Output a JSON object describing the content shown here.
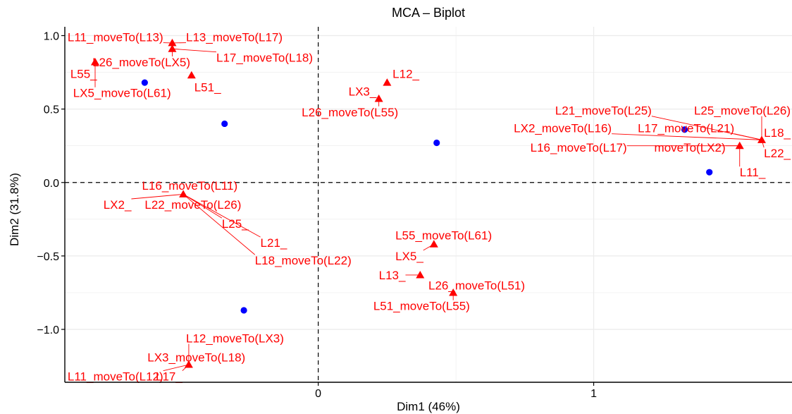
{
  "chart_data": {
    "type": "scatter",
    "title": "MCA – Biplot",
    "xlabel": "Dim1 (46%)",
    "ylabel": "Dim2 (31.8%)",
    "xlim": [
      -0.92,
      1.72
    ],
    "ylim": [
      -1.36,
      1.06
    ],
    "xticks": [
      0,
      1
    ],
    "yticks": [
      -1.0,
      -0.5,
      0.0,
      0.5,
      1.0
    ],
    "grid": true,
    "reference_lines": {
      "x": 0,
      "y": 0
    },
    "colors": {
      "individuals": "#0000ff",
      "categories": "#ff0000",
      "grid": "#ebebeb"
    },
    "individuals": [
      {
        "x": -0.63,
        "y": 0.68
      },
      {
        "x": -0.34,
        "y": 0.4
      },
      {
        "x": 0.43,
        "y": 0.27
      },
      {
        "x": 1.33,
        "y": 0.36
      },
      {
        "x": 1.42,
        "y": 0.07
      },
      {
        "x": -0.27,
        "y": -0.87
      }
    ],
    "categories": [
      {
        "label": "L11_moveTo(L13)",
        "x": -0.53,
        "y": 0.95,
        "lx": -0.91,
        "ly": 0.99
      },
      {
        "label": "L13_moveTo(L17)",
        "x": -0.53,
        "y": 0.95,
        "lx": -0.48,
        "ly": 0.99
      },
      {
        "label": "L17_moveTo(L18)",
        "x": -0.53,
        "y": 0.91,
        "lx": -0.37,
        "ly": 0.85
      },
      {
        "label": "L26_moveTo(LX5)",
        "x": -0.53,
        "y": 0.91,
        "lx": -0.82,
        "ly": 0.82
      },
      {
        "label": "L55_",
        "x": -0.81,
        "y": 0.82,
        "lx": -0.9,
        "ly": 0.74
      },
      {
        "label": "LX5_moveTo(L61)",
        "x": -0.81,
        "y": 0.82,
        "lx": -0.89,
        "ly": 0.61
      },
      {
        "label": "L51_",
        "x": -0.46,
        "y": 0.73,
        "lx": -0.45,
        "ly": 0.65
      },
      {
        "label": "L12_",
        "x": 0.25,
        "y": 0.68,
        "lx": 0.27,
        "ly": 0.74
      },
      {
        "label": "LX3_",
        "x": 0.22,
        "y": 0.57,
        "lx": 0.11,
        "ly": 0.62
      },
      {
        "label": "L26_moveTo(L55)",
        "x": 0.22,
        "y": 0.57,
        "lx": -0.06,
        "ly": 0.48
      },
      {
        "label": "L21_moveTo(L25)",
        "x": 1.61,
        "y": 0.29,
        "lx": 0.86,
        "ly": 0.49
      },
      {
        "label": "L25_moveTo(L26)",
        "x": 1.61,
        "y": 0.29,
        "lx": 1.38,
        "ly": 0.49
      },
      {
        "label": "LX2_moveTo(L16)",
        "x": 1.61,
        "y": 0.29,
        "lx": 0.71,
        "ly": 0.37
      },
      {
        "label": "L17_moveTo(L21)",
        "x": 1.61,
        "y": 0.29,
        "lx": 1.16,
        "ly": 0.37
      },
      {
        "label": "L18_",
        "x": 1.61,
        "y": 0.29,
        "lx": 1.64,
        "ly": 0.34
      },
      {
        "label": "L16_moveTo(L17)",
        "x": 1.53,
        "y": 0.25,
        "lx": 0.77,
        "ly": 0.24
      },
      {
        "label": "moveTo(LX2)",
        "x": 1.53,
        "y": 0.25,
        "lx": 1.22,
        "ly": 0.24
      },
      {
        "label": "L22_",
        "x": 1.61,
        "y": 0.29,
        "lx": 1.64,
        "ly": 0.2
      },
      {
        "label": "L11_",
        "x": 1.53,
        "y": 0.25,
        "lx": 1.53,
        "ly": 0.07
      },
      {
        "label": "L16_moveTo(L11)",
        "x": -0.49,
        "y": -0.08,
        "lx": -0.64,
        "ly": -0.02
      },
      {
        "label": "LX2_",
        "x": -0.49,
        "y": -0.08,
        "lx": -0.78,
        "ly": -0.15
      },
      {
        "label": "L22_moveTo(L26)",
        "x": -0.49,
        "y": -0.08,
        "lx": -0.63,
        "ly": -0.15
      },
      {
        "label": "L25_",
        "x": -0.49,
        "y": -0.08,
        "lx": -0.35,
        "ly": -0.28
      },
      {
        "label": "L21_",
        "x": -0.49,
        "y": -0.08,
        "lx": -0.21,
        "ly": -0.41
      },
      {
        "label": "L18_moveTo(L22)",
        "x": -0.49,
        "y": -0.08,
        "lx": -0.23,
        "ly": -0.53
      },
      {
        "label": "L55_moveTo(L61)",
        "x": 0.42,
        "y": -0.42,
        "lx": 0.28,
        "ly": -0.36
      },
      {
        "label": "LX5_",
        "x": 0.42,
        "y": -0.42,
        "lx": 0.28,
        "ly": -0.5
      },
      {
        "label": "L13_",
        "x": 0.37,
        "y": -0.63,
        "lx": 0.22,
        "ly": -0.63
      },
      {
        "label": "L26_moveTo(L51)",
        "x": 0.49,
        "y": -0.75,
        "lx": 0.4,
        "ly": -0.7
      },
      {
        "label": "L51_moveTo(L55)",
        "x": 0.49,
        "y": -0.75,
        "lx": 0.2,
        "ly": -0.84
      },
      {
        "label": "L12_moveTo(LX3)",
        "x": -0.47,
        "y": -1.24,
        "lx": -0.48,
        "ly": -1.06
      },
      {
        "label": "LX3_moveTo(L18)",
        "x": -0.47,
        "y": -1.24,
        "lx": -0.62,
        "ly": -1.19
      },
      {
        "label": "L11_moveTo(L12)",
        "x": -0.47,
        "y": -1.24,
        "lx": -0.91,
        "ly": -1.32
      },
      {
        "label": "L17_",
        "x": -0.47,
        "y": -1.24,
        "lx": -0.59,
        "ly": -1.32
      }
    ]
  }
}
